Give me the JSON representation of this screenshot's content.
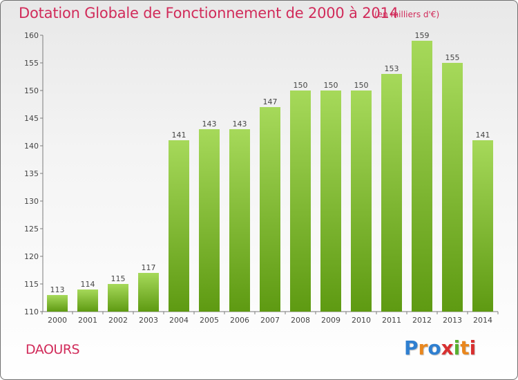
{
  "title": "Dotation Globale de Fonctionnement de 2000 à 2014",
  "unit_note": "(en milliers d'€)",
  "commune": "DAOURS",
  "logo": {
    "text": "Proxiti",
    "letters": [
      "P",
      "r",
      "o",
      "x",
      "i",
      "t",
      "i"
    ]
  },
  "colors": {
    "title": "#d12b5a",
    "bar_light": "#a6d95a",
    "bar_dark": "#5e9a12",
    "axis": "#7a7a7a"
  },
  "chart_data": {
    "type": "bar",
    "title": "Dotation Globale de Fonctionnement de 2000 à 2014",
    "subtitle": "(en milliers d'€)",
    "categories": [
      "2000",
      "2001",
      "2002",
      "2003",
      "2004",
      "2005",
      "2006",
      "2007",
      "2008",
      "2009",
      "2010",
      "2011",
      "2012",
      "2013",
      "2014"
    ],
    "values": [
      113,
      114,
      115,
      117,
      141,
      143,
      143,
      147,
      150,
      150,
      150,
      153,
      159,
      155,
      141
    ],
    "ylim": [
      110,
      160
    ],
    "yticks": [
      110,
      115,
      120,
      125,
      130,
      135,
      140,
      145,
      150,
      155,
      160
    ],
    "grid": false,
    "data_labels": true
  }
}
